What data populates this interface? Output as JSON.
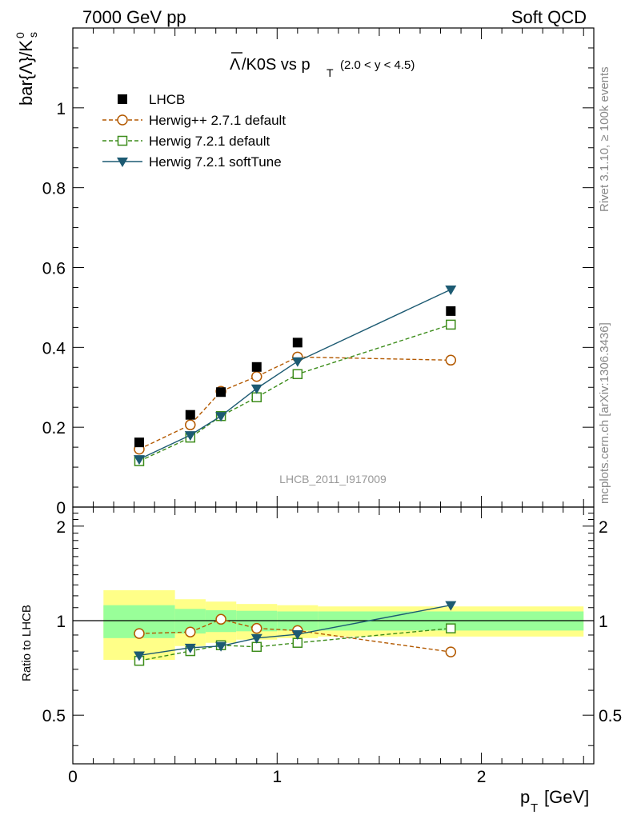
{
  "header": {
    "left": "7000 GeV pp",
    "right": "Soft QCD"
  },
  "side_labels": {
    "rivet": "Rivet 3.1.10, ≥ 100k events",
    "mcplots": "mcplots.cern.ch [arXiv:1306.3436]"
  },
  "analysis_id": "LHCB_2011_I917009",
  "ratio_panel": {
    "ylabel": "Ratio to LHCB"
  },
  "chart_data": {
    "type": "line",
    "title_main": "/K0S vs p",
    "title_subscript": "T",
    "title_range": "(2.0 < y < 4.5)",
    "ylabel_main": "bar{Λ}/K",
    "ylabel_sup": "0",
    "ylabel_sub": "s",
    "xlabel_main": "p",
    "xlabel_sub": "T",
    "xlabel_unit": "[GeV]",
    "xlim": [
      0,
      2.55
    ],
    "ylim": [
      0,
      1.2
    ],
    "ratio_ylim": [
      0.35,
      2.3
    ],
    "x_ticks": [
      "0",
      "1",
      "2"
    ],
    "y_ticks": [
      "0",
      "0.2",
      "0.4",
      "0.6",
      "0.8",
      "1"
    ],
    "ratio_ticks": [
      "0.5",
      "1",
      "2"
    ],
    "x": [
      0.325,
      0.575,
      0.725,
      0.9,
      1.1,
      1.85
    ],
    "bin_edges": [
      0.15,
      0.5,
      0.65,
      0.8,
      1.0,
      1.2,
      2.5
    ],
    "data_band_inner": [
      0.12,
      0.09,
      0.08,
      0.075,
      0.07,
      0.07
    ],
    "data_band_outer": [
      0.25,
      0.17,
      0.15,
      0.13,
      0.12,
      0.11
    ],
    "legend_position": "top-left",
    "series": [
      {
        "name": "LHCB",
        "color": "#000000",
        "marker": "square-filled",
        "values": [
          0.162,
          0.231,
          0.288,
          0.351,
          0.412,
          0.491
        ]
      },
      {
        "name": "Herwig++ 2.7.1 default",
        "color": "#b35900",
        "marker": "circle-open",
        "dash": true,
        "values": [
          0.145,
          0.206,
          0.29,
          0.327,
          0.376,
          0.368
        ],
        "ratio": [
          0.91,
          0.92,
          1.01,
          0.945,
          0.93,
          0.795
        ]
      },
      {
        "name": "Herwig 7.2.1 default",
        "color": "#3c8c1a",
        "marker": "square-open",
        "dash": true,
        "values": [
          0.115,
          0.174,
          0.228,
          0.275,
          0.333,
          0.457
        ],
        "ratio": [
          0.745,
          0.8,
          0.835,
          0.825,
          0.85,
          0.945
        ]
      },
      {
        "name": "Herwig 7.2.1 softTune",
        "color": "#1c5a72",
        "marker": "triangle-down-filled",
        "values": [
          0.12,
          0.18,
          0.228,
          0.297,
          0.365,
          0.545
        ],
        "ratio": [
          0.775,
          0.82,
          0.83,
          0.88,
          0.905,
          1.12
        ]
      }
    ]
  }
}
